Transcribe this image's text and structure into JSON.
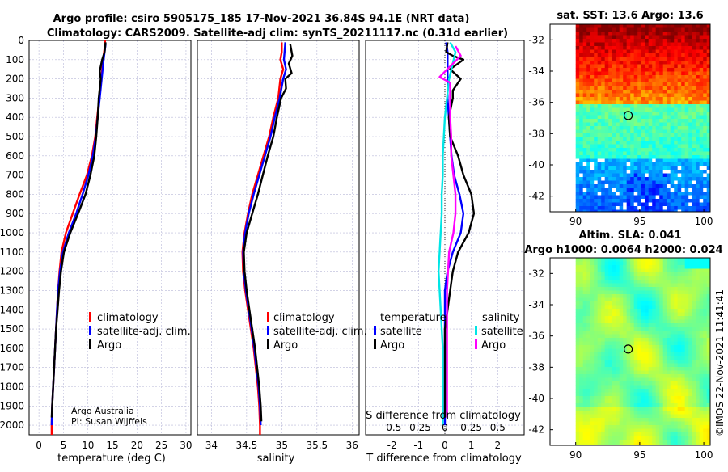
{
  "title": {
    "line1": "Argo profile: csiro 5905175_185 17-Nov-2021 36.84S 94.1E (NRT data)",
    "line2": "Climatology: CARS2009. Satellite-adj clim: synTS_20211117.nc (0.31d earlier)"
  },
  "depth_ticks": [
    "0",
    "100",
    "200",
    "300",
    "400",
    "500",
    "600",
    "700",
    "800",
    "900",
    "1000",
    "1100",
    "1200",
    "1300",
    "1400",
    "1500",
    "1600",
    "1700",
    "1800",
    "1900",
    "2000"
  ],
  "colors": {
    "climatology": "#ff0000",
    "satellite": "#0000ff",
    "argo": "#000000",
    "sal_satellite": "#00e5e5",
    "sal_argo": "#ff00ff"
  },
  "chart_data": [
    {
      "type": "line",
      "panel": "temperature",
      "xlabel": "temperature (deg C)",
      "ylabel": "depth",
      "xlim": [
        -2,
        31
      ],
      "ylim": [
        2050,
        0
      ],
      "xticks": [
        "0",
        "5",
        "10",
        "15",
        "20",
        "25",
        "30"
      ],
      "legend": [
        "climatology",
        "satellite-adj. clim.",
        "Argo"
      ],
      "credit": [
        "Argo Australia",
        "PI: Susan Wijffels"
      ],
      "series": [
        {
          "name": "climatology",
          "points": [
            [
              13.5,
              0
            ],
            [
              13.4,
              40
            ],
            [
              13.1,
              100
            ],
            [
              12.7,
              200
            ],
            [
              12.3,
              300
            ],
            [
              11.9,
              400
            ],
            [
              11.5,
              500
            ],
            [
              10.8,
              600
            ],
            [
              9.8,
              700
            ],
            [
              8.3,
              800
            ],
            [
              6.9,
              900
            ],
            [
              5.5,
              1000
            ],
            [
              4.6,
              1100
            ],
            [
              4.2,
              1200
            ],
            [
              3.9,
              1300
            ],
            [
              3.7,
              1400
            ],
            [
              3.5,
              1500
            ],
            [
              3.3,
              1600
            ],
            [
              3.1,
              1700
            ],
            [
              2.9,
              1800
            ],
            [
              2.7,
              1900
            ],
            [
              2.6,
              2000
            ],
            [
              2.6,
              2050
            ]
          ]
        },
        {
          "name": "satellite-adj. clim.",
          "points": [
            [
              13.6,
              20
            ],
            [
              13.5,
              40
            ],
            [
              13.2,
              100
            ],
            [
              12.8,
              200
            ],
            [
              12.4,
              300
            ],
            [
              12.0,
              400
            ],
            [
              11.6,
              500
            ],
            [
              11.0,
              600
            ],
            [
              10.1,
              700
            ],
            [
              8.9,
              800
            ],
            [
              7.6,
              900
            ],
            [
              6.1,
              1000
            ],
            [
              4.9,
              1100
            ],
            [
              4.3,
              1200
            ],
            [
              3.9,
              1300
            ],
            [
              3.7,
              1400
            ],
            [
              3.5,
              1500
            ],
            [
              3.3,
              1600
            ],
            [
              3.1,
              1700
            ],
            [
              2.9,
              1800
            ],
            [
              2.7,
              1900
            ],
            [
              2.6,
              2000
            ]
          ]
        },
        {
          "name": "Argo",
          "points": [
            [
              13.6,
              10
            ],
            [
              13.4,
              60
            ],
            [
              12.9,
              100
            ],
            [
              12.4,
              160
            ],
            [
              12.6,
              200
            ],
            [
              12.2,
              300
            ],
            [
              12.0,
              400
            ],
            [
              11.7,
              500
            ],
            [
              11.3,
              600
            ],
            [
              10.5,
              700
            ],
            [
              9.5,
              800
            ],
            [
              8.0,
              900
            ],
            [
              6.4,
              1000
            ],
            [
              5.1,
              1100
            ],
            [
              4.5,
              1200
            ],
            [
              4.1,
              1300
            ],
            [
              3.8,
              1400
            ],
            [
              3.5,
              1500
            ],
            [
              3.3,
              1600
            ],
            [
              3.1,
              1700
            ],
            [
              2.9,
              1800
            ],
            [
              2.7,
              1900
            ],
            [
              2.6,
              1960
            ]
          ]
        }
      ]
    },
    {
      "type": "line",
      "panel": "salinity",
      "xlabel": "salinity",
      "xlim": [
        33.8,
        36.1
      ],
      "ylim": [
        2050,
        0
      ],
      "xticks": [
        "34",
        "34.5",
        "35",
        "35.5",
        "36"
      ],
      "legend": [
        "climatology",
        "satellite-adj. clim.",
        "Argo"
      ],
      "series": [
        {
          "name": "climatology",
          "points": [
            [
              35.0,
              10
            ],
            [
              35.0,
              60
            ],
            [
              34.98,
              100
            ],
            [
              35.02,
              150
            ],
            [
              34.98,
              200
            ],
            [
              34.95,
              300
            ],
            [
              34.88,
              400
            ],
            [
              34.82,
              500
            ],
            [
              34.74,
              600
            ],
            [
              34.66,
              700
            ],
            [
              34.58,
              800
            ],
            [
              34.52,
              900
            ],
            [
              34.47,
              1000
            ],
            [
              34.44,
              1100
            ],
            [
              34.45,
              1200
            ],
            [
              34.48,
              1300
            ],
            [
              34.52,
              1400
            ],
            [
              34.56,
              1500
            ],
            [
              34.6,
              1600
            ],
            [
              34.63,
              1700
            ],
            [
              34.66,
              1800
            ],
            [
              34.68,
              1900
            ],
            [
              34.69,
              2000
            ],
            [
              34.69,
              2050
            ]
          ]
        },
        {
          "name": "satellite-adj. clim.",
          "points": [
            [
              35.05,
              10
            ],
            [
              35.04,
              60
            ],
            [
              35.03,
              100
            ],
            [
              35.06,
              150
            ],
            [
              35.02,
              200
            ],
            [
              34.97,
              300
            ],
            [
              34.9,
              400
            ],
            [
              34.84,
              500
            ],
            [
              34.76,
              600
            ],
            [
              34.68,
              700
            ],
            [
              34.6,
              800
            ],
            [
              34.53,
              900
            ],
            [
              34.48,
              1000
            ],
            [
              34.45,
              1100
            ],
            [
              34.46,
              1200
            ],
            [
              34.49,
              1300
            ],
            [
              34.53,
              1400
            ],
            [
              34.57,
              1500
            ],
            [
              34.61,
              1600
            ],
            [
              34.64,
              1700
            ],
            [
              34.67,
              1800
            ],
            [
              34.69,
              1900
            ],
            [
              34.7,
              2000
            ]
          ]
        },
        {
          "name": "Argo",
          "points": [
            [
              35.12,
              20
            ],
            [
              35.15,
              80
            ],
            [
              35.1,
              120
            ],
            [
              35.14,
              170
            ],
            [
              35.05,
              200
            ],
            [
              35.06,
              250
            ],
            [
              34.99,
              300
            ],
            [
              34.93,
              400
            ],
            [
              34.88,
              500
            ],
            [
              34.8,
              600
            ],
            [
              34.73,
              700
            ],
            [
              34.66,
              800
            ],
            [
              34.58,
              900
            ],
            [
              34.5,
              1000
            ],
            [
              34.46,
              1100
            ],
            [
              34.47,
              1200
            ],
            [
              34.5,
              1300
            ],
            [
              34.54,
              1400
            ],
            [
              34.58,
              1500
            ],
            [
              34.62,
              1600
            ],
            [
              34.65,
              1700
            ],
            [
              34.68,
              1800
            ],
            [
              34.7,
              1900
            ],
            [
              34.71,
              1980
            ]
          ]
        }
      ]
    },
    {
      "type": "line",
      "panel": "difference",
      "xlabel": "T difference from climatology",
      "top_label": "S difference from climatology",
      "xlim": [
        -3,
        3
      ],
      "ylim": [
        2050,
        0
      ],
      "xticks": [
        "-2",
        "-1",
        "0",
        "1",
        "2"
      ],
      "top_ticks": [
        "-0.5",
        "-0.25",
        "0",
        "0.25",
        "0.5"
      ],
      "legend_temperature": {
        "title": "temperature",
        "items": [
          "satellite",
          "Argo"
        ]
      },
      "legend_salinity": {
        "title": "salinity",
        "items": [
          "satellite",
          "Argo"
        ]
      },
      "series": [
        {
          "name": "temperature satellite",
          "points": [
            [
              0.05,
              10
            ],
            [
              0.1,
              60
            ],
            [
              0.1,
              100
            ],
            [
              0.1,
              200
            ],
            [
              0.1,
              300
            ],
            [
              0.15,
              400
            ],
            [
              0.2,
              500
            ],
            [
              0.25,
              600
            ],
            [
              0.35,
              700
            ],
            [
              0.55,
              800
            ],
            [
              0.7,
              900
            ],
            [
              0.6,
              1000
            ],
            [
              0.3,
              1100
            ],
            [
              0.1,
              1200
            ],
            [
              0.0,
              1300
            ],
            [
              0.0,
              1400
            ],
            [
              0.0,
              1500
            ],
            [
              0.0,
              1600
            ],
            [
              0.0,
              1700
            ],
            [
              0.0,
              1800
            ],
            [
              0.0,
              1900
            ],
            [
              0.0,
              2000
            ]
          ]
        },
        {
          "name": "temperature Argo",
          "points": [
            [
              0.1,
              10
            ],
            [
              0.05,
              60
            ],
            [
              0.3,
              80
            ],
            [
              0.7,
              100
            ],
            [
              0.2,
              150
            ],
            [
              0.6,
              200
            ],
            [
              0.3,
              260
            ],
            [
              0.3,
              300
            ],
            [
              0.15,
              400
            ],
            [
              0.2,
              500
            ],
            [
              0.5,
              600
            ],
            [
              0.7,
              700
            ],
            [
              1.0,
              800
            ],
            [
              1.1,
              900
            ],
            [
              0.9,
              1000
            ],
            [
              0.5,
              1100
            ],
            [
              0.3,
              1200
            ],
            [
              0.2,
              1300
            ],
            [
              0.1,
              1400
            ],
            [
              0.0,
              1500
            ],
            [
              0.0,
              1600
            ],
            [
              0.0,
              1700
            ],
            [
              0.0,
              1800
            ],
            [
              0.0,
              1900
            ],
            [
              0.0,
              1960
            ]
          ]
        },
        {
          "name": "salinity satellite",
          "points": [
            [
              0.05,
              10
            ],
            [
              0.1,
              60
            ],
            [
              0.04,
              200
            ],
            [
              0.02,
              300
            ],
            [
              0.0,
              400
            ],
            [
              -0.01,
              500
            ],
            [
              -0.02,
              600
            ],
            [
              -0.02,
              700
            ],
            [
              -0.03,
              800
            ],
            [
              -0.03,
              900
            ],
            [
              -0.04,
              1000
            ],
            [
              -0.05,
              1100
            ],
            [
              -0.06,
              1200
            ],
            [
              -0.05,
              1300
            ],
            [
              -0.04,
              1400
            ],
            [
              -0.03,
              1500
            ],
            [
              -0.02,
              1600
            ],
            [
              -0.02,
              1700
            ],
            [
              -0.02,
              1800
            ],
            [
              -0.02,
              1900
            ],
            [
              -0.02,
              2000
            ]
          ]
        },
        {
          "name": "salinity Argo",
          "points": [
            [
              0.1,
              30
            ],
            [
              0.15,
              80
            ],
            [
              -0.05,
              190
            ],
            [
              0.05,
              220
            ],
            [
              0.05,
              300
            ],
            [
              0.05,
              400
            ],
            [
              0.06,
              500
            ],
            [
              0.06,
              600
            ],
            [
              0.08,
              700
            ],
            [
              0.1,
              800
            ],
            [
              0.1,
              900
            ],
            [
              0.08,
              1000
            ],
            [
              0.04,
              1100
            ],
            [
              0.03,
              1200
            ],
            [
              0.02,
              1300
            ],
            [
              0.02,
              1400
            ],
            [
              0.02,
              1500
            ],
            [
              0.02,
              1600
            ],
            [
              0.02,
              1700
            ],
            [
              0.02,
              1800
            ],
            [
              0.02,
              1900
            ],
            [
              0.02,
              1960
            ]
          ]
        }
      ]
    },
    {
      "type": "heatmap",
      "panel": "sst_map",
      "title": "sat. SST: 13.6 Argo: 13.6",
      "xlim": [
        88,
        100.5
      ],
      "ylim": [
        -43,
        -31
      ],
      "xticks": [
        "90",
        "95",
        "100"
      ],
      "yticks": [
        "-32",
        "-34",
        "-36",
        "-38",
        "-40",
        "-42"
      ],
      "argo_position": [
        94.1,
        -36.84
      ]
    },
    {
      "type": "heatmap",
      "panel": "sla_map",
      "title_line1": "Altim. SLA: 0.041",
      "title_line2": "Argo h1000: 0.0064 h2000: 0.024",
      "xlim": [
        88,
        100.5
      ],
      "ylim": [
        -43,
        -31
      ],
      "xticks": [
        "90",
        "95",
        "100"
      ],
      "yticks": [
        "-32",
        "-34",
        "-36",
        "-38",
        "-40",
        "-42"
      ],
      "argo_position": [
        94.1,
        -36.84
      ]
    }
  ],
  "watermark": "©IMOS 22-Nov-2021 11:41:41"
}
